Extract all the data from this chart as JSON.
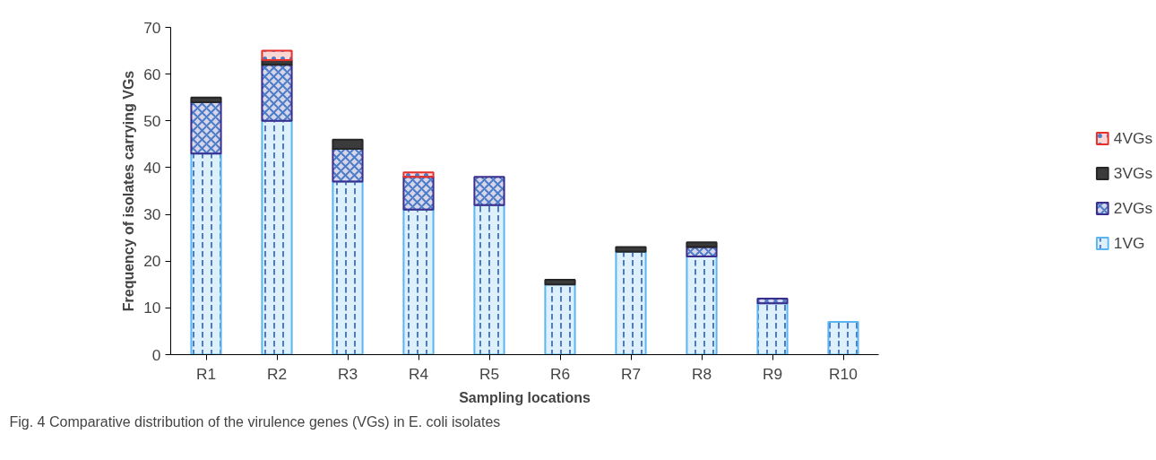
{
  "chart_data": {
    "type": "bar",
    "stacked": true,
    "categories": [
      "R1",
      "R2",
      "R3",
      "R4",
      "R5",
      "R6",
      "R7",
      "R8",
      "R9",
      "R10"
    ],
    "series": [
      {
        "name": "1VG",
        "color": "#5bb5f0",
        "values": [
          43,
          50,
          37,
          31,
          32,
          15,
          22,
          21,
          11,
          7
        ]
      },
      {
        "name": "2VGs",
        "color": "#3a2d8c",
        "values": [
          11,
          12,
          7,
          7,
          6,
          0,
          0,
          2,
          1,
          0
        ]
      },
      {
        "name": "3VGs",
        "color": "#262626",
        "values": [
          1,
          1,
          2,
          0,
          0,
          1,
          1,
          1,
          0,
          0
        ]
      },
      {
        "name": "4VGs",
        "color": "#e8302a",
        "values": [
          0,
          2,
          0,
          1,
          0,
          0,
          0,
          0,
          0,
          0
        ]
      }
    ],
    "xlabel": "Sampling locations",
    "ylabel": "Frequency of isolates carrying VGs",
    "ylim": [
      0,
      70
    ],
    "yticks": [
      0,
      10,
      20,
      30,
      40,
      50,
      60,
      70
    ],
    "grid": false,
    "legend": "right",
    "annotations": [
      "Fig. 4 Comparative distribution of the virulence genes (VGs) in E. coli isolates"
    ]
  }
}
